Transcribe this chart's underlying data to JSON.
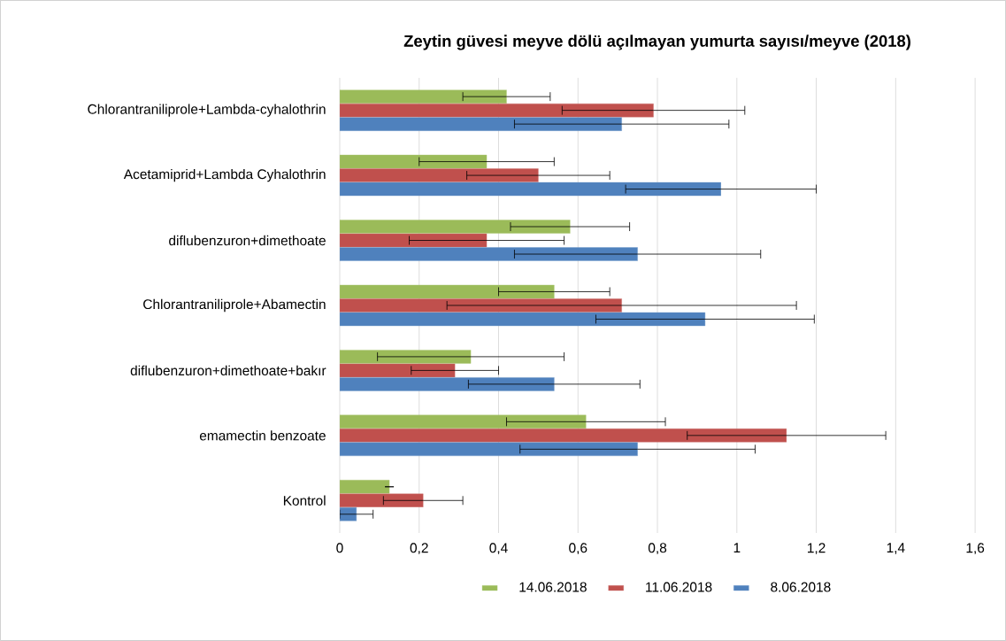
{
  "chart_data": {
    "type": "bar",
    "orientation": "horizontal",
    "title": "Zeytin güvesi meyve dölü açılmayan yumurta sayısı/meyve (2018)",
    "categories": [
      "Chlorantraniliprole+Lambda-cyhalothrin",
      "Acetamiprid+Lambda Cyhalothrin",
      "diflubenzuron+dimethoate",
      "Chlorantraniliprole+Abamectin",
      "diflubenzuron+dimethoate+bakır",
      "emamectin benzoate",
      "Kontrol"
    ],
    "series": [
      {
        "name": "14.06.2018",
        "color": "#9bbb59",
        "values": [
          0.42,
          0.37,
          0.58,
          0.54,
          0.33,
          0.62,
          0.125
        ],
        "errors": [
          0.11,
          0.17,
          0.15,
          0.14,
          0.235,
          0.2,
          0
        ]
      },
      {
        "name": "11.06.2018",
        "color": "#c0504d",
        "values": [
          0.79,
          0.5,
          0.37,
          0.71,
          0.29,
          1.125,
          0.21
        ],
        "errors": [
          0.23,
          0.18,
          0.195,
          0.44,
          0.11,
          0.25,
          0.1
        ]
      },
      {
        "name": "8.06.2018",
        "color": "#4f81bd",
        "values": [
          0.71,
          0.96,
          0.75,
          0.92,
          0.54,
          0.75,
          0.042
        ],
        "errors": [
          0.27,
          0.24,
          0.31,
          0.275,
          0.216,
          0.296,
          0.042
        ]
      }
    ],
    "xlim": [
      0,
      1.6
    ],
    "xticks": [
      0,
      {
        "value": 0.2,
        "label": "0,2"
      },
      {
        "value": 0.4,
        "label": "0,4"
      },
      {
        "value": 0.6,
        "label": "0,6"
      },
      {
        "value": 0.8,
        "label": "0,8"
      },
      1,
      {
        "value": 1.2,
        "label": "1,2"
      },
      {
        "value": 1.4,
        "label": "1,4"
      },
      {
        "value": 1.6,
        "label": "1,6"
      }
    ],
    "grid": "x",
    "legend": "bottom"
  }
}
